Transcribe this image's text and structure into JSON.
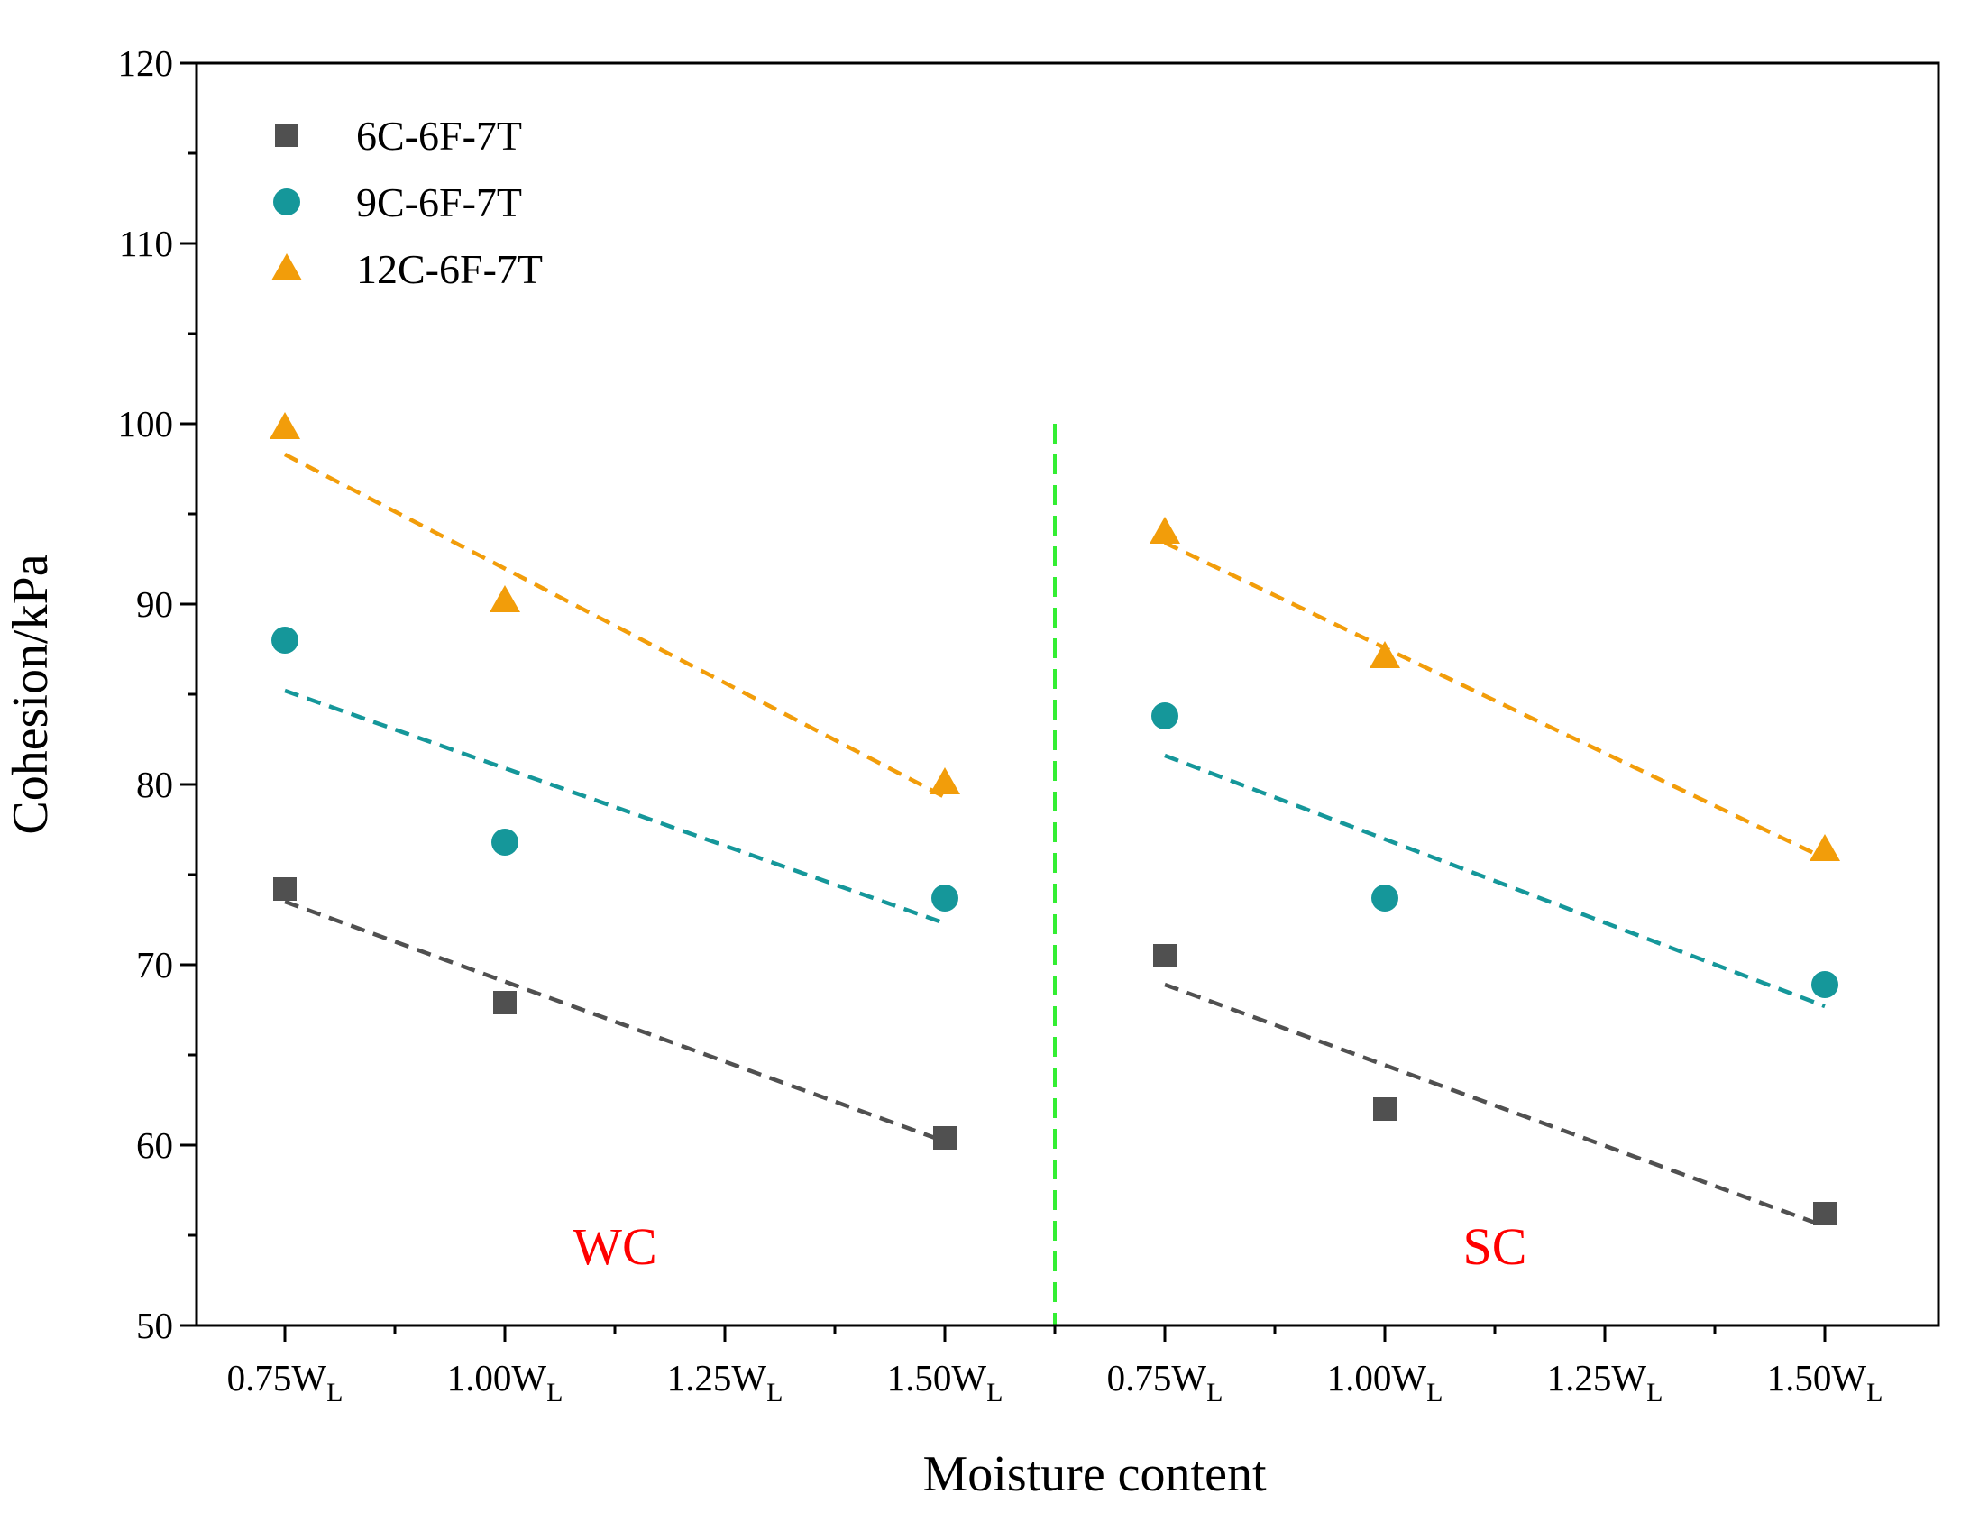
{
  "chart_data": {
    "type": "scatter",
    "xlabel": "Moisture content",
    "ylabel": "Cohesion/kPa",
    "ylim": [
      50,
      120
    ],
    "y_major_ticks": [
      50,
      60,
      70,
      80,
      90,
      100,
      110,
      120
    ],
    "x_tick_slots": [
      0,
      1,
      2,
      3,
      4,
      5,
      6,
      7
    ],
    "x_tick_labels": [
      {
        "main": "0.75W",
        "sub": "L"
      },
      {
        "main": "1.00W",
        "sub": "L"
      },
      {
        "main": "1.25W",
        "sub": "L"
      },
      {
        "main": "1.50W",
        "sub": "L"
      },
      {
        "main": "0.75W",
        "sub": "L"
      },
      {
        "main": "1.00W",
        "sub": "L"
      },
      {
        "main": "1.25W",
        "sub": "L"
      },
      {
        "main": "1.50W",
        "sub": "L"
      }
    ],
    "xlim_slots": [
      -0.4,
      7.5
    ],
    "region_divider_slot": 3.5,
    "regions": [
      {
        "label": "WC",
        "center_slot": 1.5,
        "y": 54.4,
        "color": "#ff0000"
      },
      {
        "label": "SC",
        "center_slot": 5.5,
        "y": 54.4,
        "color": "#ff0000"
      }
    ],
    "divider_color": "#33ee33",
    "divider_ylim": [
      50,
      100
    ],
    "legend_position": "top-left",
    "series": [
      {
        "name": "6C-6F-7T",
        "marker": "square",
        "color": "#505050",
        "points": [
          {
            "slot": 0,
            "value": 74.2
          },
          {
            "slot": 1,
            "value": 67.9
          },
          {
            "slot": 3,
            "value": 60.4
          },
          {
            "slot": 4,
            "value": 70.5
          },
          {
            "slot": 5,
            "value": 62.0
          },
          {
            "slot": 7,
            "value": 56.2
          }
        ],
        "trend": [
          {
            "slot_start": 0,
            "y_start": 73.5,
            "slot_end": 3,
            "y_end": 60.2
          },
          {
            "slot_start": 4,
            "y_start": 68.9,
            "slot_end": 7,
            "y_end": 55.5
          }
        ]
      },
      {
        "name": "9C-6F-7T",
        "marker": "circle",
        "color": "#15979a",
        "points": [
          {
            "slot": 0,
            "value": 88.0
          },
          {
            "slot": 1,
            "value": 76.8
          },
          {
            "slot": 3,
            "value": 73.7
          },
          {
            "slot": 4,
            "value": 83.8
          },
          {
            "slot": 5,
            "value": 73.7
          },
          {
            "slot": 7,
            "value": 68.9
          }
        ],
        "trend": [
          {
            "slot_start": 0,
            "y_start": 85.2,
            "slot_end": 3,
            "y_end": 72.3
          },
          {
            "slot_start": 4,
            "y_start": 81.6,
            "slot_end": 7,
            "y_end": 67.7
          }
        ]
      },
      {
        "name": "12C-6F-7T",
        "marker": "triangle",
        "color": "#f29d0a",
        "points": [
          {
            "slot": 0,
            "value": 99.8
          },
          {
            "slot": 1,
            "value": 90.2
          },
          {
            "slot": 3,
            "value": 80.1
          },
          {
            "slot": 4,
            "value": 94.0
          },
          {
            "slot": 5,
            "value": 87.1
          },
          {
            "slot": 7,
            "value": 76.4
          }
        ],
        "trend": [
          {
            "slot_start": 0,
            "y_start": 98.3,
            "slot_end": 3,
            "y_end": 79.3
          },
          {
            "slot_start": 4,
            "y_start": 93.4,
            "slot_end": 7,
            "y_end": 75.9
          }
        ]
      }
    ]
  }
}
